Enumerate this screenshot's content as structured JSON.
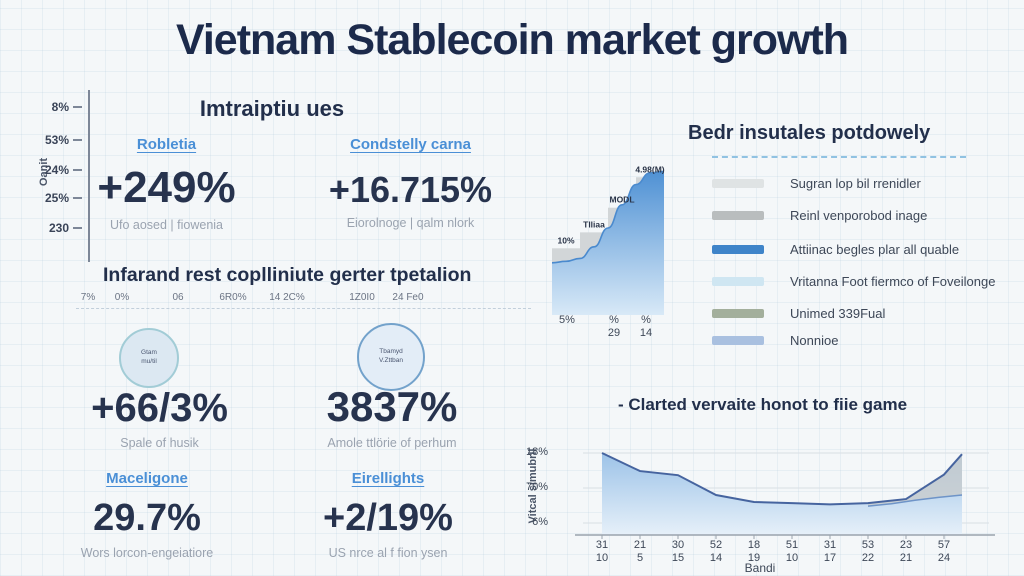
{
  "page": {
    "title": "Vietnam Stablecoin market growth"
  },
  "theme": {
    "background": "#f4f7f9",
    "title_color": "#1c2a4b",
    "accent_blue": "#4a8fd6",
    "value_color": "#27334e",
    "caption_color": "#9aa3b0"
  },
  "mini_axis": {
    "label": "Oanit",
    "ticks": [
      "8%",
      "53%",
      "24%",
      "25%",
      "230"
    ]
  },
  "top_stats": {
    "heading": "Imtraiptiu ues",
    "items": [
      {
        "link": "Robletia",
        "value": "+249%",
        "caption": "Ufo aosed | fiowenia"
      },
      {
        "link": "Condstelly carna",
        "value": "+16.715%",
        "caption": "Eiorolnoge | qalm nlork"
      }
    ]
  },
  "mid_section": {
    "heading": "Infarand rest coplliniute gerter tpetalion",
    "axis_ticks": [
      "7%",
      "0%",
      "06",
      "6R0%",
      "14 2C%",
      "1Z0I0",
      "24 Fe0"
    ],
    "items": [
      {
        "badge": "Gtam\nmu/til",
        "value": "+66/3%",
        "caption": "Spale of husik"
      },
      {
        "badge": "Tbamyd\nV.Zttban",
        "value": "3837%",
        "caption": "Amole ttlörie of perhum"
      }
    ]
  },
  "bottom_stats": {
    "items": [
      {
        "link": "Maceligone",
        "value": "29.7%",
        "caption": "Wors lorcon-engeiatiore"
      },
      {
        "link": "Eirellights",
        "value": "+2/19%",
        "caption": "US nrce al f fion ysen"
      }
    ]
  },
  "legend": {
    "heading": "Bedr insutales potdowely",
    "items": [
      {
        "label": "Sugran lop bil rrenidler",
        "color": "#dfe3e4"
      },
      {
        "label": "Reinl venporobod inage",
        "color": "#b9bdbe"
      },
      {
        "label": "Attiinac begles plar all quable",
        "color": "#3f84c9"
      },
      {
        "label": "Vritanna Foot fiermco of Foveilonge",
        "color": "#cfe6f2"
      },
      {
        "label": "Unimed 339Fual",
        "color": "#a3af9c"
      },
      {
        "label": "Nonnioe",
        "color": "#a9c0e0"
      }
    ]
  },
  "chart_data": [
    {
      "type": "area",
      "title": "",
      "description": "ascending gray step bars overlaid by rising blue gradient area curve",
      "step_labels": [
        "10%",
        "Tlliaa",
        "MODL",
        "4.98(M)"
      ],
      "step_heights_relative": [
        0.46,
        0.57,
        0.74,
        0.95
      ],
      "curve_relative": [
        0.36,
        0.37,
        0.39,
        0.47,
        0.6,
        0.76,
        0.9,
        0.98,
        0.99
      ],
      "x_tick_labels": [
        "5%",
        "%\n29",
        "%\n14"
      ],
      "colors": {
        "bar": "#d2d6d8",
        "curve": "#4a8ace",
        "area_top": "#4f91d4",
        "area_bottom": "#d8e9f7"
      }
    },
    {
      "type": "line",
      "title": "- Clarted vervaite honot to fiie game",
      "ylabel": "Vitcal simubril",
      "xlabel": "Bandi",
      "y_tick_labels": [
        "18%",
        "70%",
        "6%"
      ],
      "x_tick_labels": [
        "31\n10",
        "21\n5",
        "30\n15",
        "52\n14",
        "18\n19",
        "51\n10",
        "31\n17",
        "53\n22",
        "23\n21",
        "57\n24"
      ],
      "value_scale": {
        "top_tick": 18,
        "bottom_tick": 6
      },
      "grid": true,
      "legend_position": "none",
      "series": [
        {
          "name": "main",
          "color": "#46649f",
          "values": [
            18,
            14.9,
            14.2,
            10.8,
            9.6,
            9.4,
            9.2,
            9.4,
            10.1,
            14.3
          ],
          "end_value": 17.8
        },
        {
          "name": "secondary",
          "color": "#6e94c8",
          "start_index": 7,
          "values": [
            8.9,
            9.3,
            9.9,
            10.4
          ],
          "end_value": 10.8
        }
      ],
      "band": {
        "color": "#c8cccd",
        "note": "gray band between the two lines on the right side"
      }
    }
  ]
}
